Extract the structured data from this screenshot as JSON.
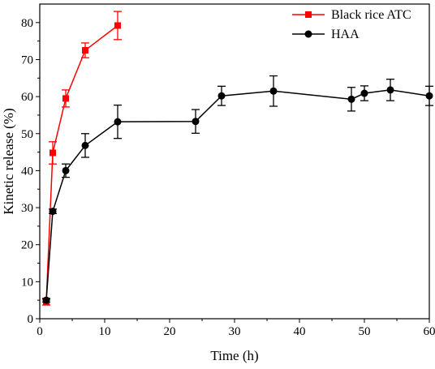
{
  "chart_data": {
    "type": "line",
    "xlabel": "Time (h)",
    "ylabel": "Kinetic release (%)",
    "xlim": [
      0,
      60
    ],
    "ylim": [
      0,
      85
    ],
    "xticks": [
      0,
      10,
      20,
      30,
      40,
      50,
      60
    ],
    "yticks": [
      0,
      10,
      20,
      30,
      40,
      50,
      60,
      70,
      80
    ],
    "grid": false,
    "legend_position": "top-right",
    "series": [
      {
        "name": "Black rice ATC",
        "color": "#ff0000",
        "marker": "square",
        "x": [
          1,
          2,
          4,
          7,
          12
        ],
        "y": [
          4.5,
          44.8,
          59.5,
          72.5,
          79.2
        ],
        "err": [
          0.8,
          3.0,
          2.3,
          2.0,
          3.8
        ]
      },
      {
        "name": "HAA",
        "color": "#000000",
        "marker": "circle",
        "x": [
          1,
          2,
          4,
          7,
          12,
          24,
          28,
          36,
          48,
          50,
          54,
          60
        ],
        "y": [
          5.0,
          29.0,
          40.0,
          46.8,
          53.2,
          53.3,
          60.2,
          61.5,
          59.3,
          60.9,
          61.8,
          60.2
        ],
        "err": [
          0.5,
          0.6,
          1.8,
          3.2,
          4.5,
          3.2,
          2.6,
          4.1,
          3.2,
          2.0,
          2.9,
          2.6
        ]
      }
    ]
  }
}
